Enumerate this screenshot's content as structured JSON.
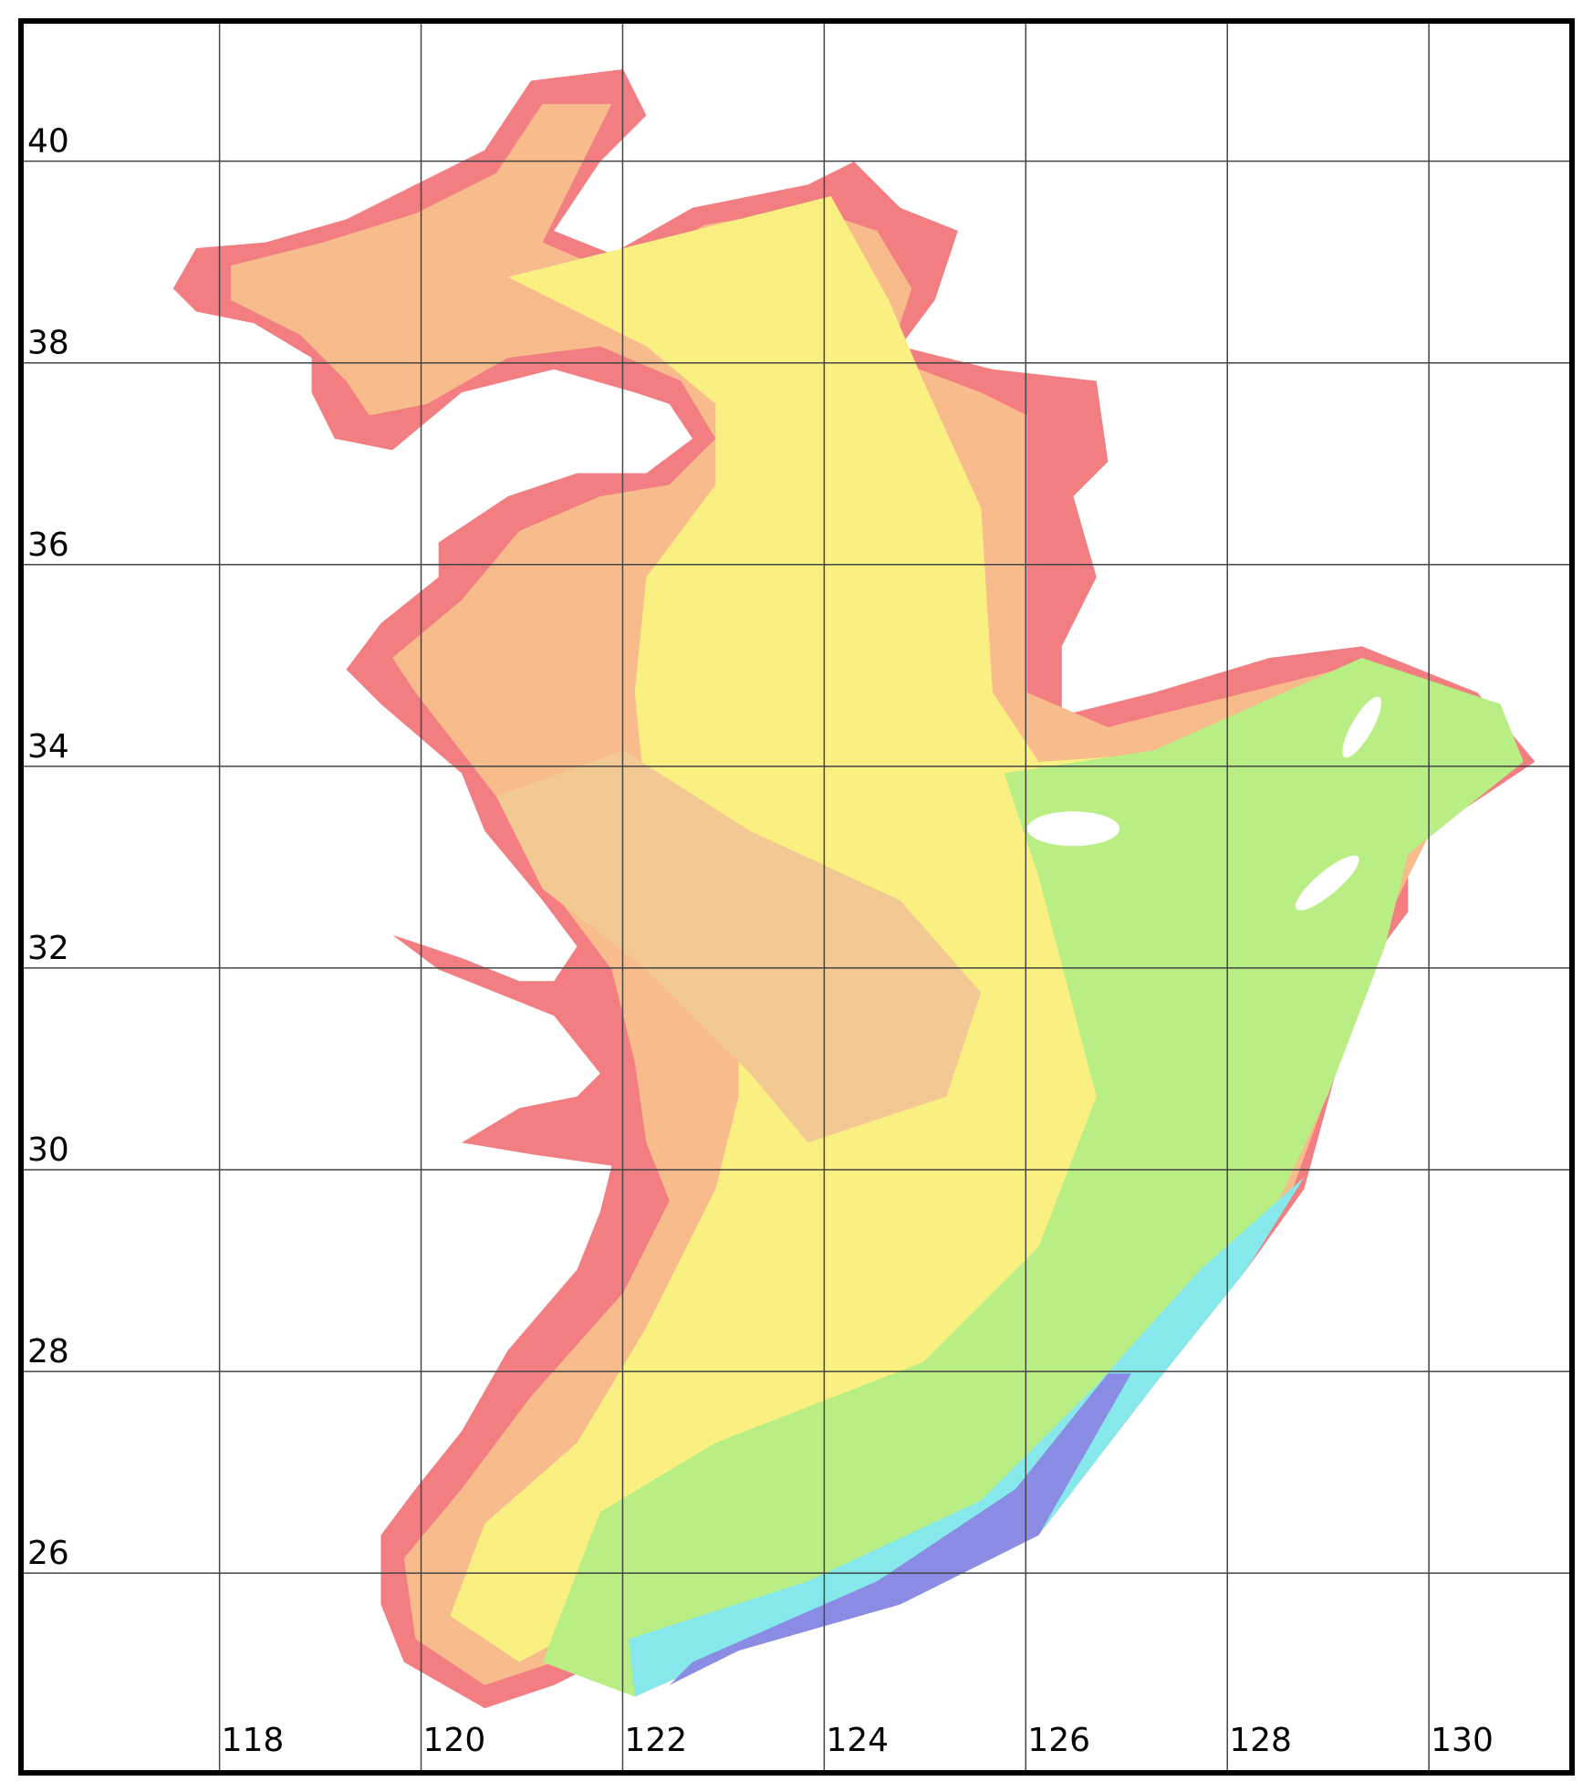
{
  "map": {
    "xticks": [
      118,
      120,
      122,
      124,
      126,
      128,
      130
    ],
    "yticks": [
      26,
      28,
      30,
      32,
      34,
      36,
      38,
      40
    ],
    "xlim": [
      116.03,
      131.42
    ],
    "ylim": [
      24.02,
      41.39
    ]
  }
}
